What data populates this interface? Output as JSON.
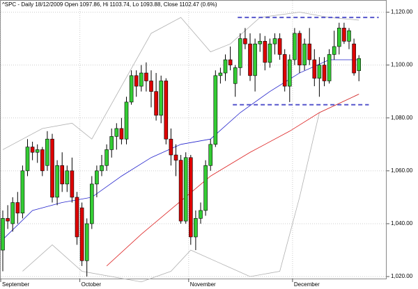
{
  "chart_data": {
    "type": "candlestick",
    "title": "^SPC - Daily 18/12/2009 Open 1097.86, Hi 1103.74, Lo 1093.88, Close 1102.47 (0.6%)",
    "up_color": "#33cc33",
    "down_color": "#dd0000",
    "ylim": [
      1019.5,
      1122.5
    ],
    "yticks": [
      {
        "value": 1020,
        "label": "1,020.00"
      },
      {
        "value": 1040,
        "label": "1,040.00"
      },
      {
        "value": 1060,
        "label": "1,060.00"
      },
      {
        "value": 1080,
        "label": "1,080.00"
      },
      {
        "value": 1100,
        "label": "1,100.00"
      },
      {
        "value": 1120,
        "label": "1,120.00"
      }
    ],
    "grid": true,
    "x_labels": [
      "September",
      "October",
      "November",
      "December"
    ],
    "x_label_positions": [
      0,
      16,
      38,
      59
    ],
    "open": [
      1030,
      1042,
      1040,
      1048,
      1044,
      1060,
      1069,
      1067,
      1068,
      1062,
      1072,
      1050,
      1062,
      1055,
      1060,
      1050,
      1046,
      1026,
      1040,
      1055,
      1060,
      1062,
      1068,
      1073,
      1076,
      1072,
      1086,
      1096,
      1092,
      1097,
      1094,
      1090,
      1081,
      1094,
      1072,
      1066,
      1064,
      1041,
      1065,
      1035,
      1042,
      1045,
      1062,
      1070,
      1096,
      1097,
      1102,
      1093,
      1099,
      1110,
      1108,
      1096,
      1108,
      1109,
      1101,
      1108,
      1110,
      1104,
      1092,
      1102,
      1112,
      1100,
      1108,
      1102,
      1095,
      1100,
      1094,
      1104,
      1107,
      1114,
      1109,
      1108,
      1097.86
    ],
    "high": [
      1045,
      1047,
      1050,
      1052,
      1062,
      1072,
      1071,
      1070,
      1069,
      1075,
      1074,
      1064,
      1067,
      1062,
      1065,
      1052,
      1048,
      1042,
      1058,
      1062,
      1066,
      1070,
      1076,
      1078,
      1080,
      1088,
      1098,
      1098,
      1100,
      1101,
      1098,
      1097,
      1096,
      1095,
      1076,
      1070,
      1066,
      1067,
      1066,
      1045,
      1048,
      1064,
      1072,
      1098,
      1099,
      1104,
      1107,
      1100,
      1112,
      1114,
      1112,
      1110,
      1112,
      1111,
      1110,
      1112,
      1112,
      1106,
      1104,
      1114,
      1113,
      1110,
      1114,
      1106,
      1103,
      1103,
      1106,
      1113,
      1116,
      1116,
      1114,
      1110,
      1103.74
    ],
    "low": [
      1022,
      1038,
      1037,
      1040,
      1042,
      1058,
      1064,
      1063,
      1058,
      1060,
      1048,
      1047,
      1052,
      1052,
      1048,
      1032,
      1024,
      1020,
      1038,
      1050,
      1058,
      1060,
      1065,
      1068,
      1070,
      1070,
      1085,
      1088,
      1090,
      1090,
      1084,
      1079,
      1078,
      1070,
      1062,
      1058,
      1040,
      1040,
      1032,
      1030,
      1040,
      1043,
      1060,
      1069,
      1093,
      1094,
      1098,
      1088,
      1096,
      1106,
      1094,
      1090,
      1105,
      1098,
      1099,
      1104,
      1102,
      1090,
      1086,
      1100,
      1097,
      1098,
      1100,
      1092,
      1088,
      1092,
      1093,
      1102,
      1104,
      1108,
      1106,
      1096,
      1093.88
    ],
    "close": [
      1042,
      1041,
      1048,
      1044,
      1060,
      1069,
      1067,
      1068,
      1060,
      1072,
      1050,
      1062,
      1055,
      1060,
      1050,
      1035,
      1026,
      1040,
      1055,
      1060,
      1062,
      1068,
      1073,
      1076,
      1072,
      1086,
      1096,
      1092,
      1097,
      1094,
      1090,
      1081,
      1094,
      1072,
      1066,
      1064,
      1041,
      1065,
      1035,
      1042,
      1045,
      1062,
      1070,
      1096,
      1097,
      1102,
      1100,
      1099,
      1110,
      1108,
      1096,
      1108,
      1109,
      1101,
      1108,
      1110,
      1104,
      1092,
      1102,
      1112,
      1100,
      1108,
      1102,
      1095,
      1100,
      1094,
      1104,
      1107,
      1114,
      1109,
      1113,
      1097,
      1102.47
    ],
    "overlays": [
      {
        "color": "#b0b0b0",
        "x": [
          0,
          8,
          14,
          18,
          24,
          30,
          36,
          42,
          46,
          52,
          60,
          66,
          72
        ],
        "values": [
          1068,
          1076,
          1078,
          1072,
          1092,
          1112,
          1118,
          1105,
          1108,
          1118,
          1120,
          1118,
          1117
        ]
      },
      {
        "color": "#b0b0b0",
        "x": [
          4,
          10,
          16,
          22,
          28,
          34,
          38,
          44,
          50,
          56,
          60,
          64,
          72
        ],
        "values": [
          1022,
          1032,
          1022,
          1020,
          1018,
          1022,
          1030,
          1025,
          1020,
          1022,
          1050,
          1082,
          1089
        ]
      },
      {
        "color": "#2222cc",
        "x": [
          0,
          6,
          12,
          18,
          24,
          30,
          36,
          42,
          48,
          54,
          60,
          66,
          72
        ],
        "values": [
          1034,
          1045,
          1048,
          1050,
          1058,
          1065,
          1070,
          1072,
          1082,
          1090,
          1097,
          1102,
          1102
        ]
      },
      {
        "color": "#dd2222",
        "x": [
          21,
          28,
          35,
          42,
          50,
          58,
          64,
          72
        ],
        "values": [
          1024,
          1036,
          1047,
          1058,
          1067,
          1075,
          1082,
          1089
        ]
      }
    ],
    "hlines": [
      {
        "value": 1118,
        "x0": 47.5,
        "x1": 76
      },
      {
        "value": 1085,
        "x0": 46.5,
        "x1": 74
      }
    ],
    "hline_color": "#5555cc"
  }
}
